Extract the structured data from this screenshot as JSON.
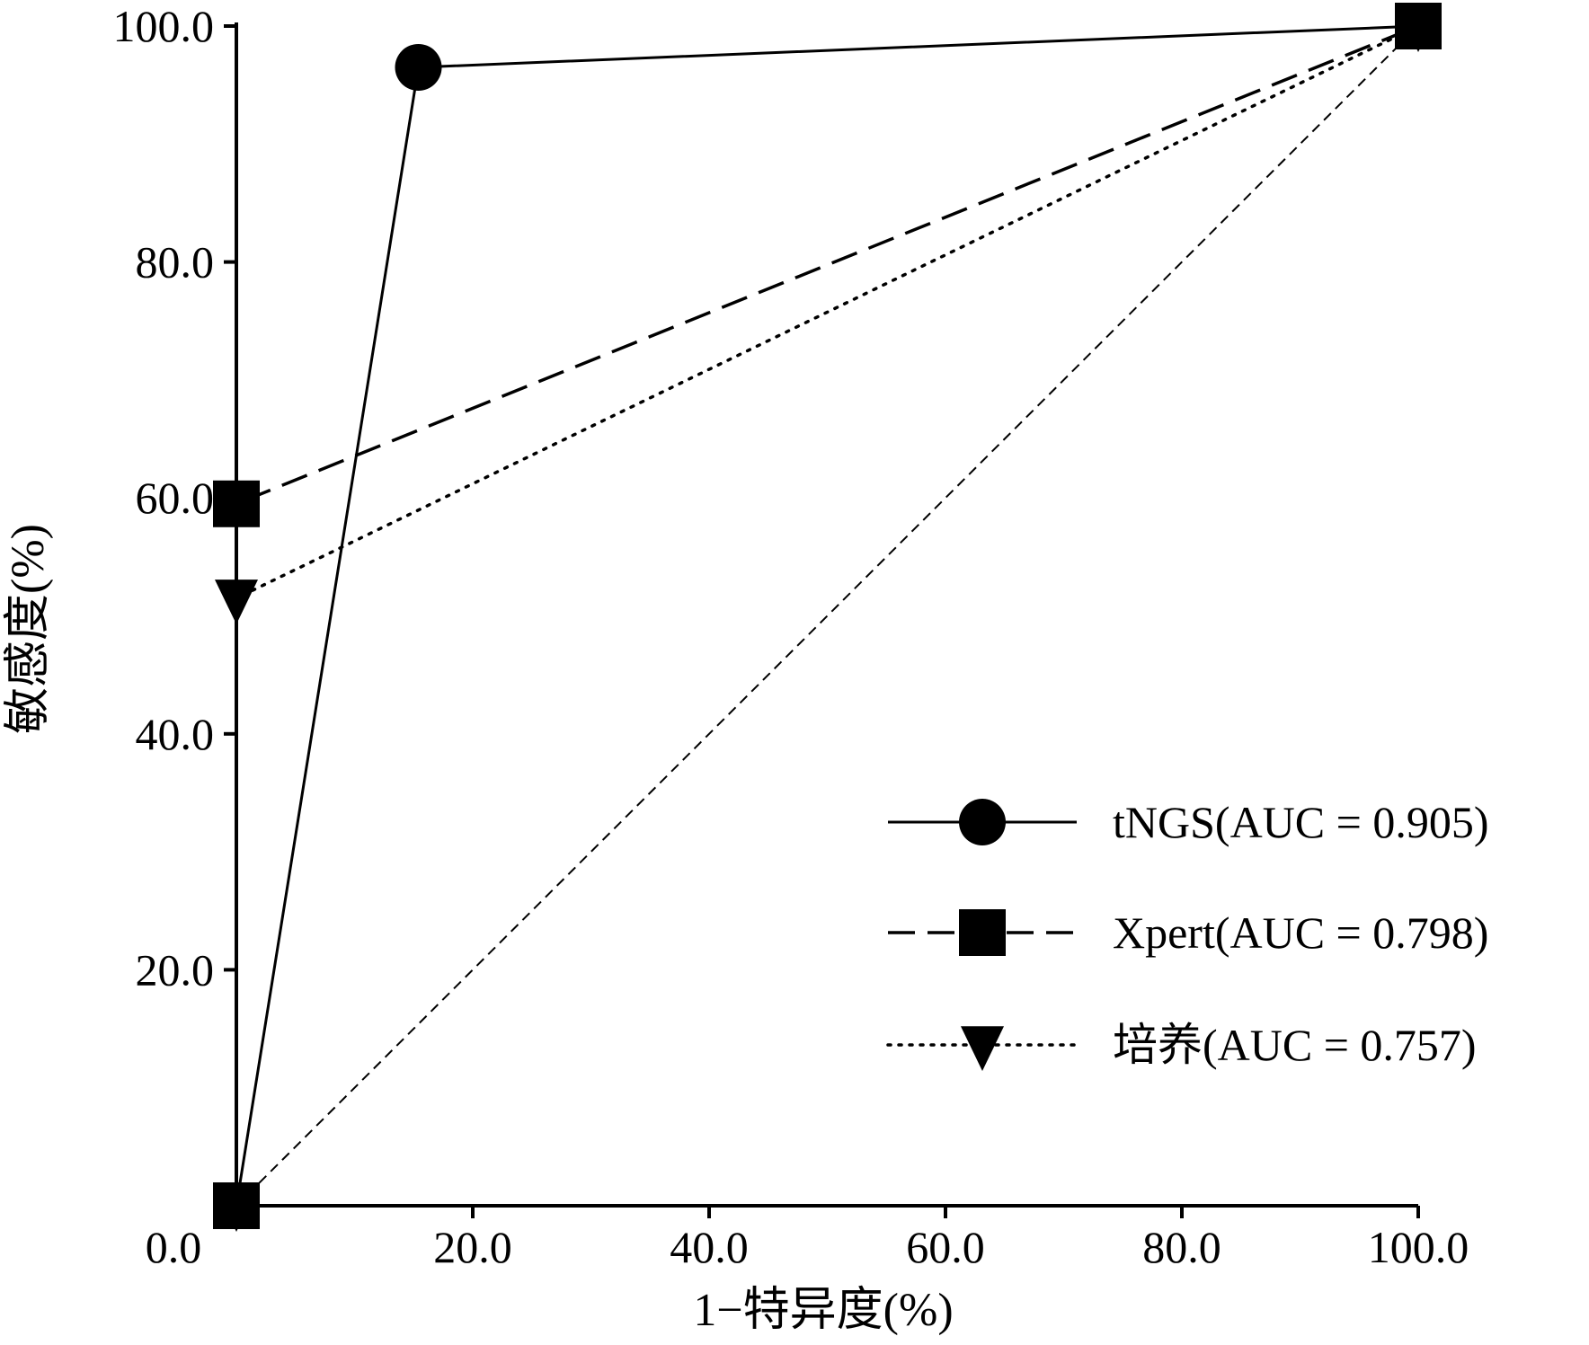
{
  "chart_data": {
    "type": "line",
    "xlabel": "1−特异度(%)",
    "ylabel": "敏感度(%)",
    "xlim": [
      0,
      100
    ],
    "ylim": [
      0,
      100
    ],
    "x_ticks": [
      "0.0",
      "20.0",
      "40.0",
      "60.0",
      "80.0",
      "100.0"
    ],
    "y_ticks": [
      "20.0",
      "40.0",
      "60.0",
      "80.0",
      "100.0"
    ],
    "grid": false,
    "legend_position": "lower-right",
    "series": [
      {
        "name": "tNGS(AUC = 0.905)",
        "line": "solid",
        "marker": "circle",
        "points": [
          {
            "x": 0,
            "y": 0
          },
          {
            "x": 15.4,
            "y": 96.5
          },
          {
            "x": 100,
            "y": 100
          }
        ]
      },
      {
        "name": "Xpert(AUC = 0.798)",
        "line": "dashed",
        "marker": "square",
        "points": [
          {
            "x": 0,
            "y": 0
          },
          {
            "x": 0,
            "y": 59.5
          },
          {
            "x": 100,
            "y": 100
          }
        ]
      },
      {
        "name": "培养(AUC = 0.757)",
        "line": "dotted",
        "marker": "triangle-down",
        "points": [
          {
            "x": 0,
            "y": 0
          },
          {
            "x": 0,
            "y": 51.5
          },
          {
            "x": 100,
            "y": 100
          }
        ]
      }
    ],
    "reference_line": {
      "line": "thin-dashed",
      "points": [
        {
          "x": 0,
          "y": 0
        },
        {
          "x": 100,
          "y": 100
        }
      ]
    }
  }
}
